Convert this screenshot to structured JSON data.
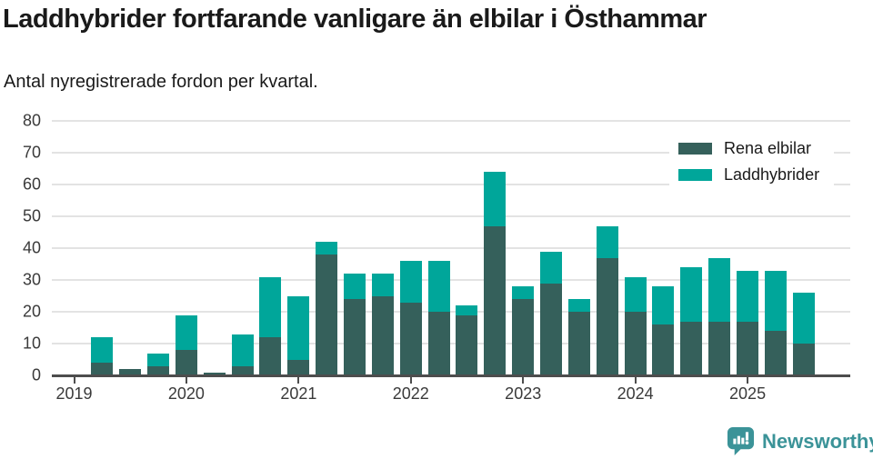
{
  "header": {
    "title": "Laddhybrider fortfarande vanligare än elbilar i Östhammar",
    "subtitle": "Antal nyregistrerade fordon per kvartal."
  },
  "footer": {
    "brand": "Newsworthy"
  },
  "colors": {
    "pure_ev": "#35605b",
    "plugin_hybrid": "#00a69a",
    "axis_line": "#4d4d4d",
    "gridline": "#e3e3e3",
    "tick_label": "#3a3a3a",
    "text": "#1a1a1a",
    "brand_teal": "#3b9398",
    "background": "#ffffff"
  },
  "chart_data": {
    "type": "bar",
    "stacked": true,
    "title": "Laddhybrider fortfarande vanligare än elbilar i Östhammar",
    "subtitle": "Antal nyregistrerade fordon per kvartal.",
    "x": [
      "2019-Q1",
      "2019-Q2",
      "2019-Q3",
      "2019-Q4",
      "2020-Q1",
      "2020-Q2",
      "2020-Q3",
      "2020-Q4",
      "2021-Q1",
      "2021-Q2",
      "2021-Q3",
      "2021-Q4",
      "2022-Q1",
      "2022-Q2",
      "2022-Q3",
      "2022-Q4",
      "2023-Q1",
      "2023-Q2",
      "2023-Q3",
      "2023-Q4",
      "2024-Q1",
      "2024-Q2",
      "2024-Q3",
      "2024-Q4",
      "2025-Q1",
      "2025-Q2",
      "2025-Q3"
    ],
    "x_tick_labels": [
      "2019",
      "2020",
      "2021",
      "2022",
      "2023",
      "2024",
      "2025"
    ],
    "series": [
      {
        "name": "Rena elbilar",
        "color": "#35605b",
        "values": [
          0,
          4,
          2,
          3,
          8,
          1,
          3,
          12,
          5,
          38,
          24,
          25,
          23,
          20,
          19,
          47,
          24,
          29,
          20,
          37,
          20,
          16,
          17,
          17,
          17,
          14,
          10
        ]
      },
      {
        "name": "Laddhybrider",
        "color": "#00a69a",
        "values": [
          0,
          8,
          0,
          4,
          11,
          0,
          10,
          19,
          20,
          4,
          8,
          7,
          13,
          16,
          3,
          17,
          4,
          10,
          4,
          10,
          11,
          12,
          17,
          20,
          16,
          19,
          16
        ]
      }
    ],
    "stacked_totals": [
      0,
      12,
      2,
      7,
      19,
      1,
      13,
      31,
      25,
      42,
      32,
      32,
      36,
      36,
      22,
      64,
      28,
      39,
      24,
      47,
      31,
      28,
      34,
      37,
      33,
      33,
      26
    ],
    "ylim": [
      0,
      80
    ],
    "yticks": [
      0,
      10,
      20,
      30,
      40,
      50,
      60,
      70,
      80
    ],
    "grid": true,
    "legend_position": "top-right"
  }
}
